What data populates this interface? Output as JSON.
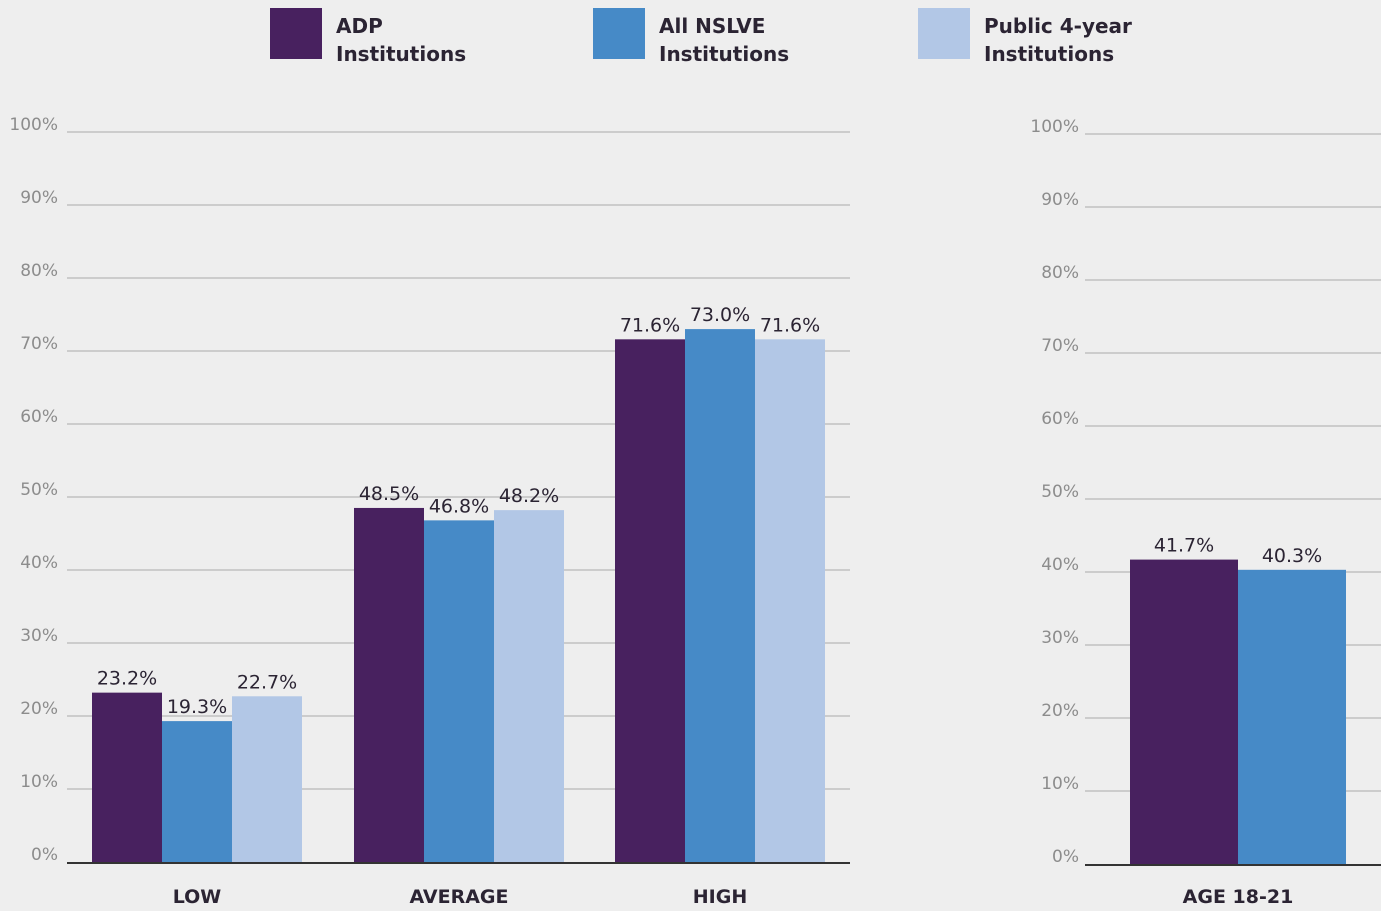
{
  "legend": [
    {
      "line1": "ADP",
      "line2": "Institutions",
      "color": "#48215f"
    },
    {
      "line1": "All NSLVE",
      "line2": "Institutions",
      "color": "#468ac7"
    },
    {
      "line1": "Public 4-year",
      "line2": "Institutions",
      "color": "#b2c7e6"
    }
  ],
  "chart_data": [
    {
      "type": "bar",
      "categories": [
        "LOW",
        "AVERAGE",
        "HIGH"
      ],
      "series": [
        {
          "name": "ADP Institutions",
          "values": [
            23.2,
            48.5,
            71.6
          ],
          "labels": [
            "23.2%",
            "48.5%",
            "71.6%"
          ],
          "color": "#48215f"
        },
        {
          "name": "All NSLVE Institutions",
          "values": [
            19.3,
            46.8,
            73.0
          ],
          "labels": [
            "19.3%",
            "46.8%",
            "73.0%"
          ],
          "color": "#468ac7"
        },
        {
          "name": "Public 4-year Institutions",
          "values": [
            22.7,
            48.2,
            71.6
          ],
          "labels": [
            "22.7%",
            "48.2%",
            "71.6%"
          ],
          "color": "#b2c7e6"
        }
      ],
      "yticks": [
        "0%",
        "10%",
        "20%",
        "30%",
        "40%",
        "50%",
        "60%",
        "70%",
        "80%",
        "90%",
        "100%"
      ],
      "ylim": [
        0,
        100
      ],
      "grid": true,
      "legend": "top"
    },
    {
      "type": "bar",
      "categories": [
        "AGE 18-21"
      ],
      "series": [
        {
          "name": "ADP Institutions",
          "values": [
            41.7
          ],
          "labels": [
            "41.7%"
          ],
          "color": "#48215f"
        },
        {
          "name": "All NSLVE Institutions",
          "values": [
            40.3
          ],
          "labels": [
            "40.3%"
          ],
          "color": "#468ac7"
        }
      ],
      "yticks": [
        "0%",
        "10%",
        "20%",
        "30%",
        "40%",
        "50%",
        "60%",
        "70%",
        "80%",
        "90%",
        "100%"
      ],
      "ylim": [
        0,
        100
      ],
      "grid": true,
      "legend": "top"
    }
  ]
}
